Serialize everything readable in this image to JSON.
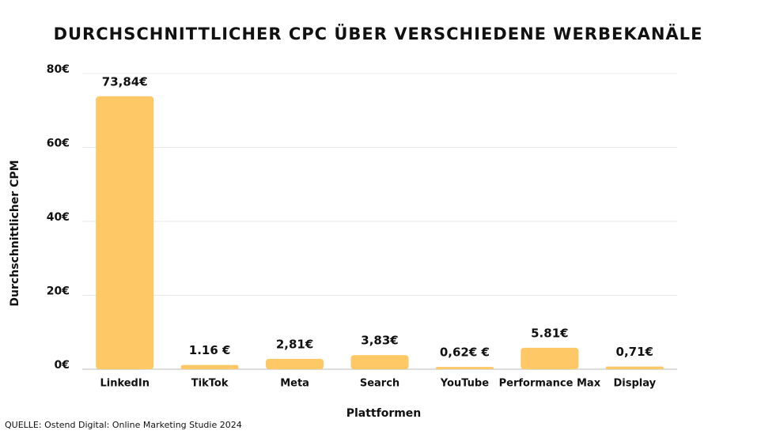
{
  "chart_data": {
    "type": "bar",
    "title": "DURCHSCHNITTLICHER CPC ÜBER VERSCHIEDENE WERBEKANÄLE",
    "x_label": "Plattformen",
    "y_label": "Durchschnittlicher CPM",
    "source": "QUELLE: Ostend Digital: Online Marketing Studie 2024",
    "categories": [
      "LinkedIn",
      "TikTok",
      "Meta",
      "Search",
      "YouTube",
      "Performance Max",
      "Display"
    ],
    "values": [
      73.84,
      1.16,
      2.81,
      3.83,
      0.62,
      5.81,
      0.71
    ],
    "value_labels": [
      "73,84€",
      "1.16 €",
      "2,81€",
      "3,83€",
      "0,62€ €",
      "5.81€",
      "0,71€"
    ],
    "color": "#fec866",
    "ylim": [
      0,
      80
    ],
    "yticks": [
      {
        "value": 0,
        "label": "0€"
      },
      {
        "value": 20,
        "label": "20€"
      },
      {
        "value": 40,
        "label": "40€"
      },
      {
        "value": 60,
        "label": "60€"
      },
      {
        "value": 80,
        "label": "80€"
      }
    ],
    "grid": true
  }
}
